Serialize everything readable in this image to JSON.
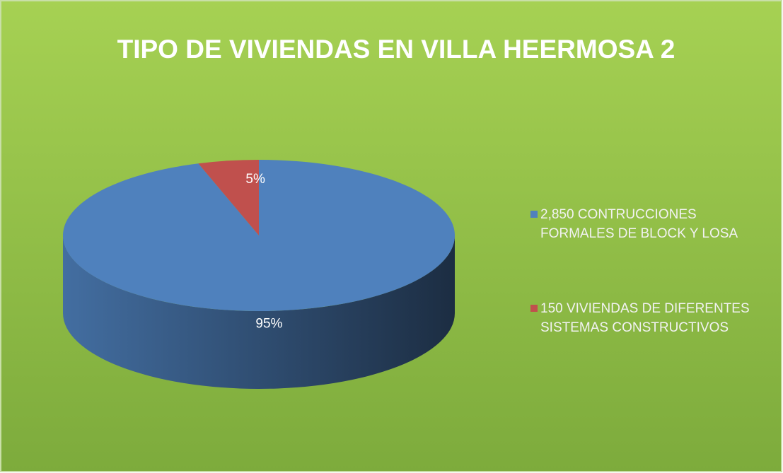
{
  "chart_data": {
    "type": "pie",
    "title": "TIPO DE VIVIENDAS EN VILLA HEERMOSA 2",
    "categories": [
      "2,850   CONTRUCCIONES FORMALES DE BLOCK Y LOSA",
      "150 VIVIENDAS  DE DIFERENTES SISTEMAS CONSTRUCTIVOS"
    ],
    "values": [
      95,
      5
    ],
    "value_labels": [
      "95%",
      "5%"
    ],
    "colors": [
      "#4f81bd",
      "#c0504d"
    ],
    "legend": "right"
  }
}
